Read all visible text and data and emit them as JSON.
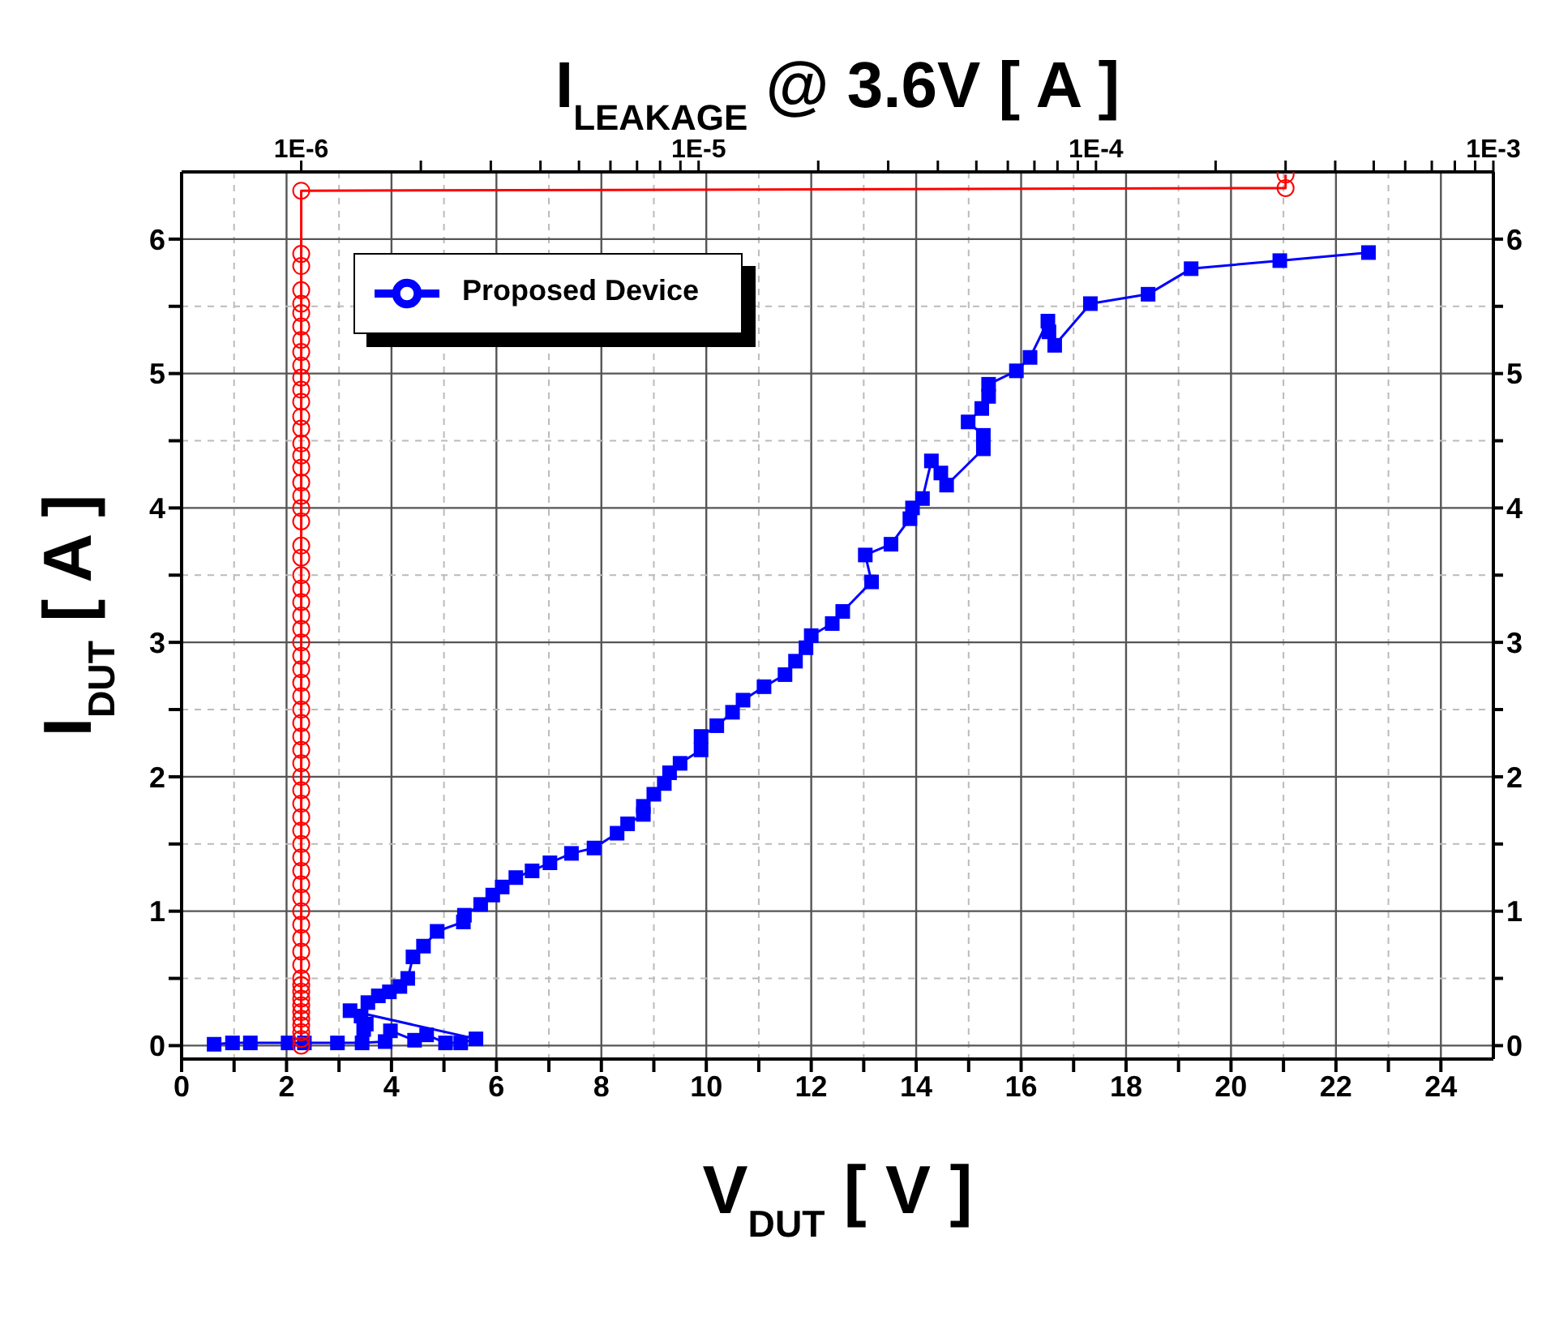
{
  "chart_data": {
    "type": "line",
    "xlabel": "V$_{DUT}$ [ V ]",
    "ylabel": "I$_{DUT}$ [ A ]",
    "x2label": "I$_{LEAKAGE}$ @ 3.6V [ A ]",
    "xlim": [
      0,
      25
    ],
    "xticks": [
      0,
      {
        "value": 1,
        "label": null
      },
      2,
      {
        "value": 3,
        "label": null
      },
      4,
      {
        "value": 5,
        "label": null
      },
      6,
      {
        "value": 7,
        "label": null
      },
      8,
      {
        "value": 9,
        "label": null
      },
      10,
      {
        "value": 11,
        "label": null
      },
      12,
      {
        "value": 13,
        "label": null
      },
      14,
      {
        "value": 15,
        "label": null
      },
      16,
      {
        "value": 17,
        "label": null
      },
      18,
      {
        "value": 19,
        "label": null
      },
      20,
      {
        "value": 21,
        "label": null
      },
      22,
      {
        "value": 23,
        "label": null
      },
      24
    ],
    "x2lim": [
      5e-07,
      0.001
    ],
    "x2ticks": [
      {
        "value": 1e-06,
        "label": "1E-6"
      },
      {
        "value": 2e-06,
        "label": null
      },
      {
        "value": 3e-06,
        "label": null
      },
      {
        "value": 4e-06,
        "label": null
      },
      {
        "value": 5e-06,
        "label": null
      },
      {
        "value": 6e-06,
        "label": null
      },
      {
        "value": 7e-06,
        "label": null
      },
      {
        "value": 8e-06,
        "label": null
      },
      {
        "value": 9e-06,
        "label": null
      },
      {
        "value": 1e-05,
        "label": "1E-5"
      },
      {
        "value": 2e-05,
        "label": null
      },
      {
        "value": 3e-05,
        "label": null
      },
      {
        "value": 4e-05,
        "label": null
      },
      {
        "value": 5e-05,
        "label": null
      },
      {
        "value": 6e-05,
        "label": null
      },
      {
        "value": 7e-05,
        "label": null
      },
      {
        "value": 8e-05,
        "label": null
      },
      {
        "value": 9e-05,
        "label": null
      },
      {
        "value": 0.0001,
        "label": "1E-4"
      },
      {
        "value": 0.0002,
        "label": null
      },
      {
        "value": 0.0003,
        "label": null
      },
      {
        "value": 0.0004,
        "label": null
      },
      {
        "value": 0.0005,
        "label": null
      },
      {
        "value": 0.0006,
        "label": null
      },
      {
        "value": 0.0007,
        "label": null
      },
      {
        "value": 0.0008,
        "label": null
      },
      {
        "value": 0.0009,
        "label": null
      },
      {
        "value": 0.001,
        "label": "1E-3"
      }
    ],
    "log": "x2",
    "ylim": [
      -0.1,
      6.5
    ],
    "yticks": [
      0,
      {
        "value": 0.5,
        "label": null
      },
      1,
      {
        "value": 1.5,
        "label": null
      },
      2,
      {
        "value": 2.5,
        "label": null
      },
      3,
      {
        "value": 3.5,
        "label": null
      },
      4,
      {
        "value": 4.5,
        "label": null
      },
      5,
      {
        "value": 5.5,
        "label": null
      },
      6
    ],
    "y2lim": [
      -0.1,
      6.5
    ],
    "y2ticks": [
      0,
      {
        "value": 0.5,
        "label": null
      },
      1,
      {
        "value": 1.5,
        "label": null
      },
      2,
      {
        "value": 2.5,
        "label": null
      },
      3,
      {
        "value": 3.5,
        "label": null
      },
      4,
      {
        "value": 4.5,
        "label": null
      },
      5,
      {
        "value": 5.5,
        "label": null
      },
      6
    ],
    "grid": true,
    "legend": "top left",
    "line_style": "solid",
    "series": [
      {
        "name": "Proposed Device",
        "color": "#0000ff",
        "marker": "square",
        "x": [
          0.62,
          0.97,
          1.31,
          2.03,
          2.34,
          2.97,
          3.44,
          3.88,
          3.98,
          4.44,
          4.67,
          5.03,
          5.32,
          5.61,
          3.21,
          3.42,
          3.52,
          3.47,
          3.55,
          3.75,
          3.96,
          4.16,
          4.31,
          4.41,
          4.61,
          4.87,
          5.37,
          5.39,
          5.7,
          5.93,
          6.11,
          6.37,
          6.68,
          7.02,
          7.43,
          7.86,
          8.3,
          8.5,
          8.8,
          8.8,
          9.0,
          9.2,
          9.3,
          9.5,
          9.9,
          9.9,
          10.2,
          10.5,
          10.7,
          11.1,
          11.5,
          11.7,
          11.9,
          12.0,
          12.4,
          12.6,
          13.15,
          13.03,
          13.52,
          13.88,
          13.93,
          14.12,
          14.29,
          14.47,
          14.58,
          15.28,
          15.28,
          14.99,
          15.25,
          15.38,
          15.38,
          15.91,
          16.17,
          16.51,
          16.53,
          16.64,
          17.32,
          18.42,
          19.24,
          20.93,
          22.62
        ],
        "values": [
          0.01,
          0.02,
          0.02,
          0.02,
          0.02,
          0.02,
          0.02,
          0.03,
          0.11,
          0.04,
          0.08,
          0.02,
          0.02,
          0.05,
          0.26,
          0.22,
          0.16,
          0.12,
          0.32,
          0.37,
          0.4,
          0.44,
          0.5,
          0.66,
          0.74,
          0.85,
          0.92,
          0.97,
          1.05,
          1.12,
          1.18,
          1.25,
          1.3,
          1.36,
          1.43,
          1.47,
          1.58,
          1.65,
          1.72,
          1.78,
          1.87,
          1.95,
          2.03,
          2.1,
          2.2,
          2.3,
          2.38,
          2.48,
          2.57,
          2.67,
          2.76,
          2.86,
          2.96,
          3.05,
          3.14,
          3.23,
          3.45,
          3.65,
          3.73,
          3.92,
          4.0,
          4.07,
          4.35,
          4.26,
          4.17,
          4.44,
          4.54,
          4.64,
          4.74,
          4.83,
          4.92,
          5.02,
          5.12,
          5.39,
          5.31,
          5.21,
          5.52,
          5.59,
          5.78,
          5.84,
          5.9
        ]
      },
      {
        "color": "#ff0000",
        "marker": "circle",
        "axis": "x2",
        "x": [
          1e-06,
          1e-06,
          1e-06,
          1e-06,
          1e-06,
          1e-06,
          1e-06,
          1e-06,
          1e-06,
          1e-06,
          1e-06,
          1e-06,
          1e-06,
          1e-06,
          1e-06,
          1e-06,
          1e-06,
          1e-06,
          1e-06,
          1e-06,
          1e-06,
          1e-06,
          1e-06,
          1e-06,
          1e-06,
          1e-06,
          1e-06,
          1e-06,
          1e-06,
          1e-06,
          1e-06,
          1e-06,
          1e-06,
          1e-06,
          1e-06,
          1e-06,
          1e-06,
          1e-06,
          1e-06,
          1e-06,
          1e-06,
          1e-06,
          1e-06,
          1e-06,
          1e-06,
          1e-06,
          1e-06,
          1e-06,
          1e-06,
          1e-06,
          1e-06,
          1e-06,
          1e-06,
          1e-06,
          1e-06,
          1e-06,
          1e-06,
          1e-06,
          1e-06,
          1e-06,
          1e-06,
          1e-06,
          1e-06,
          1e-06,
          1e-06,
          0.0003,
          0.0003
        ],
        "values": [
          0,
          0.05,
          0.1,
          0.15,
          0.2,
          0.25,
          0.3,
          0.35,
          0.4,
          0.45,
          0.5,
          0.6,
          0.7,
          0.8,
          0.9,
          1.0,
          1.1,
          1.2,
          1.3,
          1.4,
          1.5,
          1.6,
          1.7,
          1.8,
          1.9,
          2.0,
          2.1,
          2.2,
          2.3,
          2.4,
          2.5,
          2.6,
          2.7,
          2.8,
          2.9,
          3.0,
          3.1,
          3.2,
          3.3,
          3.4,
          3.5,
          3.63,
          3.72,
          3.9,
          4.0,
          4.09,
          4.19,
          4.3,
          4.39,
          4.48,
          4.59,
          4.68,
          4.79,
          4.88,
          4.97,
          5.06,
          5.16,
          5.25,
          5.35,
          5.45,
          5.52,
          5.62,
          5.8,
          5.89,
          6.36,
          6.38,
          6.48
        ]
      }
    ]
  }
}
